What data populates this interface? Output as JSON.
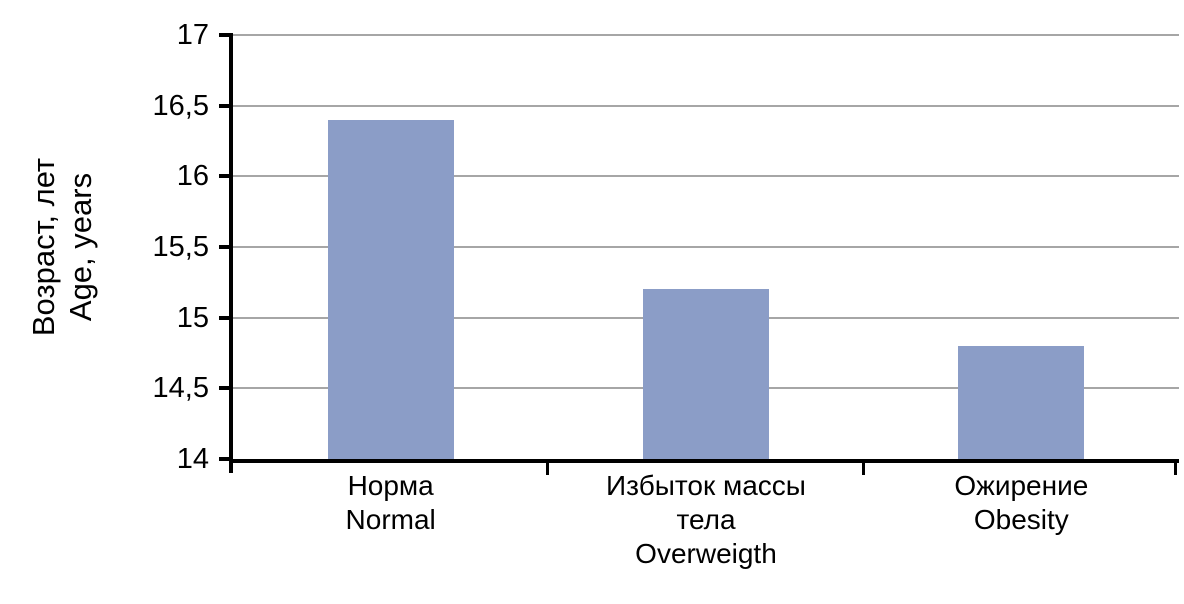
{
  "chart_data": {
    "type": "bar",
    "title": "",
    "categories": [
      {
        "lines": [
          "Норма",
          "Normal"
        ]
      },
      {
        "lines": [
          "Избыток массы",
          "тела",
          "Overweigth"
        ]
      },
      {
        "lines": [
          "Ожирение",
          "Obesity"
        ]
      }
    ],
    "values": [
      16.4,
      15.2,
      14.8
    ],
    "ylabel_lines": [
      "Возраст, лет",
      "Age, years"
    ],
    "xlabel": "",
    "ylim": [
      14,
      17
    ],
    "y_ticks": [
      {
        "label": "17",
        "value": 17
      },
      {
        "label": "16,5",
        "value": 16.5
      },
      {
        "label": "16",
        "value": 16
      },
      {
        "label": "15,5",
        "value": 15.5
      },
      {
        "label": "15",
        "value": 15
      },
      {
        "label": "14,5",
        "value": 14.5
      },
      {
        "label": "14",
        "value": 14
      }
    ],
    "grid": true,
    "legend": false,
    "colors": {
      "bar": "#8B9DC7",
      "gridline": "#A6A6A6",
      "axis": "#000000",
      "text": "#000000",
      "background": "#FFFFFF"
    }
  }
}
